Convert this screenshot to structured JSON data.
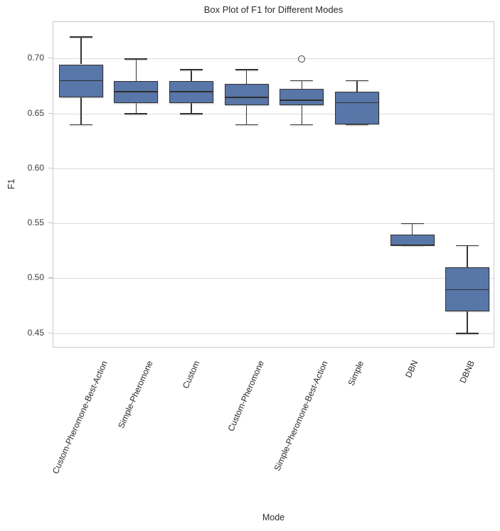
{
  "chart_data": {
    "type": "box",
    "title": "Box Plot of F1 for Different Modes",
    "xlabel": "Mode",
    "ylabel": "F1",
    "ylim": [
      0.4365,
      0.7335
    ],
    "grid": "horizontal-only",
    "legend": "none",
    "yticks": [
      {
        "value": 0.45,
        "label": "0.45"
      },
      {
        "value": 0.5,
        "label": "0.50"
      },
      {
        "value": 0.55,
        "label": "0.55"
      },
      {
        "value": 0.6,
        "label": "0.60"
      },
      {
        "value": 0.65,
        "label": "0.65"
      },
      {
        "value": 0.7,
        "label": "0.70"
      }
    ],
    "categories": [
      "Custom-Pheromone-Best-Action",
      "Simple-Pheromone",
      "Custom",
      "Custom-Pheromone",
      "Simple-Pheromone-Best-Action",
      "Simple",
      "DBN",
      "DBNB"
    ],
    "boxes": [
      {
        "label": "Custom-Pheromone-Best-Action",
        "whisker_low": 0.64,
        "q1": 0.665,
        "median": 0.68,
        "q3": 0.695,
        "whisker_high": 0.72,
        "outliers": []
      },
      {
        "label": "Simple-Pheromone",
        "whisker_low": 0.65,
        "q1": 0.66,
        "median": 0.67,
        "q3": 0.68,
        "whisker_high": 0.7,
        "outliers": []
      },
      {
        "label": "Custom",
        "whisker_low": 0.65,
        "q1": 0.66,
        "median": 0.67,
        "q3": 0.68,
        "whisker_high": 0.69,
        "outliers": []
      },
      {
        "label": "Custom-Pheromone",
        "whisker_low": 0.64,
        "q1": 0.6575,
        "median": 0.665,
        "q3": 0.6775,
        "whisker_high": 0.69,
        "outliers": []
      },
      {
        "label": "Simple-Pheromone-Best-Action",
        "whisker_low": 0.64,
        "q1": 0.6575,
        "median": 0.6625,
        "q3": 0.6725,
        "whisker_high": 0.68,
        "outliers": [
          0.7
        ]
      },
      {
        "label": "Simple",
        "whisker_low": 0.64,
        "q1": 0.64,
        "median": 0.66,
        "q3": 0.67,
        "whisker_high": 0.68,
        "outliers": []
      },
      {
        "label": "DBN",
        "whisker_low": 0.53,
        "q1": 0.53,
        "median": 0.53,
        "q3": 0.54,
        "whisker_high": 0.55,
        "outliers": []
      },
      {
        "label": "DBNB",
        "whisker_low": 0.45,
        "q1": 0.47,
        "median": 0.49,
        "q3": 0.51,
        "whisker_high": 0.53,
        "outliers": []
      }
    ],
    "colors": {
      "box_fill": "#5876a8",
      "box_edge": "#333333",
      "median": "#2f2f2f",
      "whisker": "#333333",
      "outlier_edge": "#3f3f3f",
      "grid": "#dcdcdc",
      "spine": "#c9c9c9",
      "title_text": "#2b2b2b",
      "tick_text": "#3a3a3a",
      "background": "#ffffff"
    }
  }
}
